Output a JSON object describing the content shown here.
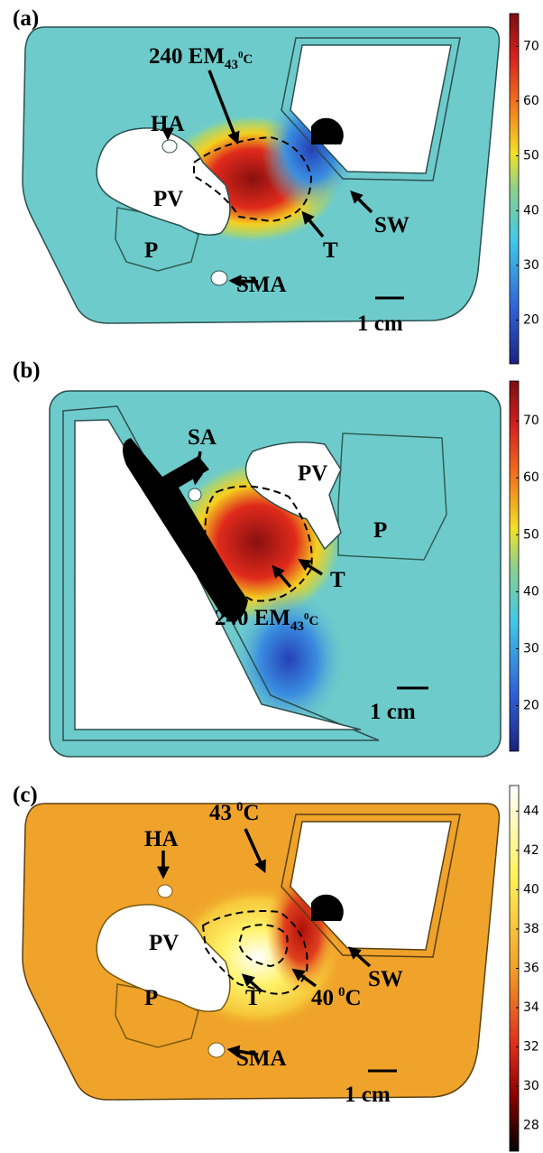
{
  "panels": [
    {
      "label": "(a)",
      "labels": {
        "em": {
          "prefix": "240 EM",
          "sub": "43",
          "sup": "0",
          "unit": "C"
        },
        "ha": "HA",
        "pv": "PV",
        "p": "P",
        "t": "T",
        "sw": "SW",
        "sma": "SMA",
        "scale": "1 cm"
      },
      "colorbar": {
        "lim": [
          12,
          76
        ],
        "ticks": [
          20,
          30,
          40,
          50,
          60,
          70
        ],
        "colormap": "jet"
      }
    },
    {
      "label": "(b)",
      "labels": {
        "sa": "SA",
        "pv": "PV",
        "p": "P",
        "t": "T",
        "em": {
          "prefix": "240 EM",
          "sub": "43",
          "sup": "0",
          "unit": "C"
        },
        "scale": "1 cm"
      },
      "colorbar": {
        "lim": [
          12,
          77
        ],
        "ticks": [
          20,
          30,
          40,
          50,
          60,
          70
        ],
        "colormap": "jet"
      }
    },
    {
      "label": "(c)",
      "labels": {
        "ha": "HA",
        "t43": {
          "value": "43",
          "sup": "0",
          "unit": "C"
        },
        "pv": "PV",
        "p": "P",
        "t": "T",
        "t40": {
          "value": "40",
          "sup": "0",
          "unit": "C"
        },
        "sw": "SW",
        "sma": "SMA",
        "scale": "1 cm"
      },
      "colorbar": {
        "lim": [
          26.7,
          45.3
        ],
        "ticks": [
          28,
          30,
          32,
          34,
          36,
          38,
          40,
          42,
          44
        ],
        "colormap": "hot"
      }
    }
  ]
}
